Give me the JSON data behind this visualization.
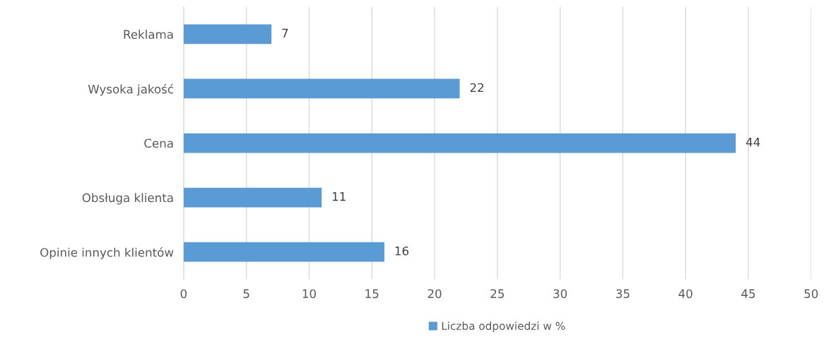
{
  "chart_data": {
    "type": "bar",
    "orientation": "horizontal",
    "categories": [
      "Reklama",
      "Wysoka jakość",
      "Cena",
      "Obsługa klienta",
      "Opinie innych klientów"
    ],
    "series": [
      {
        "name": "Liczba odpowiedzi w %",
        "color": "#5b9bd5",
        "values": [
          7,
          22,
          44,
          11,
          16
        ]
      }
    ],
    "xlim": [
      0,
      50
    ],
    "xticks": [
      0,
      5,
      10,
      15,
      20,
      25,
      30,
      35,
      40,
      45,
      50
    ],
    "grid": "x",
    "legend": "bottom",
    "data_labels": true
  }
}
